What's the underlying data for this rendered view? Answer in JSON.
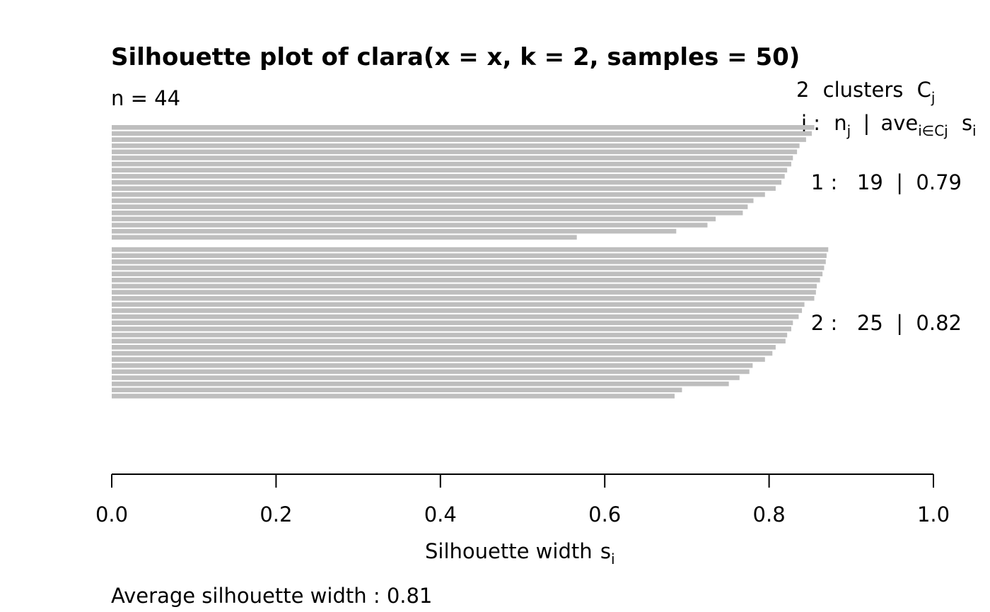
{
  "chart_data": {
    "type": "bar",
    "orientation": "horizontal",
    "title": "Silhouette plot of clara(x = x, k = 2, samples = 50)",
    "n_label": "n = 44",
    "xlabel": "Silhouette width",
    "xlabel_sub": "i",
    "xlabel_main": "s",
    "xlim": [
      0.0,
      1.0
    ],
    "xticks": [
      "0.0",
      "0.2",
      "0.4",
      "0.6",
      "0.8",
      "1.0"
    ],
    "bar_color": "#bebebe",
    "legend": {
      "title_count": "2",
      "title_word": "clusters",
      "title_c": "C",
      "title_c_sub": "j",
      "header_j": "j :",
      "header_n": "n",
      "header_n_sub": "j",
      "header_sep": "|",
      "header_ave": "ave",
      "header_ave_sub": "i∈Cj",
      "header_s": "s",
      "header_s_sub": "i"
    },
    "clusters": [
      {
        "label": "1 :   19  |  0.79",
        "values": [
          0.855,
          0.852,
          0.845,
          0.837,
          0.834,
          0.829,
          0.827,
          0.822,
          0.819,
          0.815,
          0.808,
          0.795,
          0.781,
          0.774,
          0.768,
          0.735,
          0.725,
          0.687,
          0.566
        ]
      },
      {
        "label": "2 :   25  |  0.82",
        "values": [
          0.872,
          0.87,
          0.869,
          0.867,
          0.865,
          0.862,
          0.858,
          0.857,
          0.855,
          0.843,
          0.84,
          0.836,
          0.829,
          0.827,
          0.822,
          0.82,
          0.808,
          0.804,
          0.795,
          0.78,
          0.776,
          0.764,
          0.751,
          0.694,
          0.685
        ]
      }
    ],
    "footer": "Average silhouette width :  0.81"
  }
}
